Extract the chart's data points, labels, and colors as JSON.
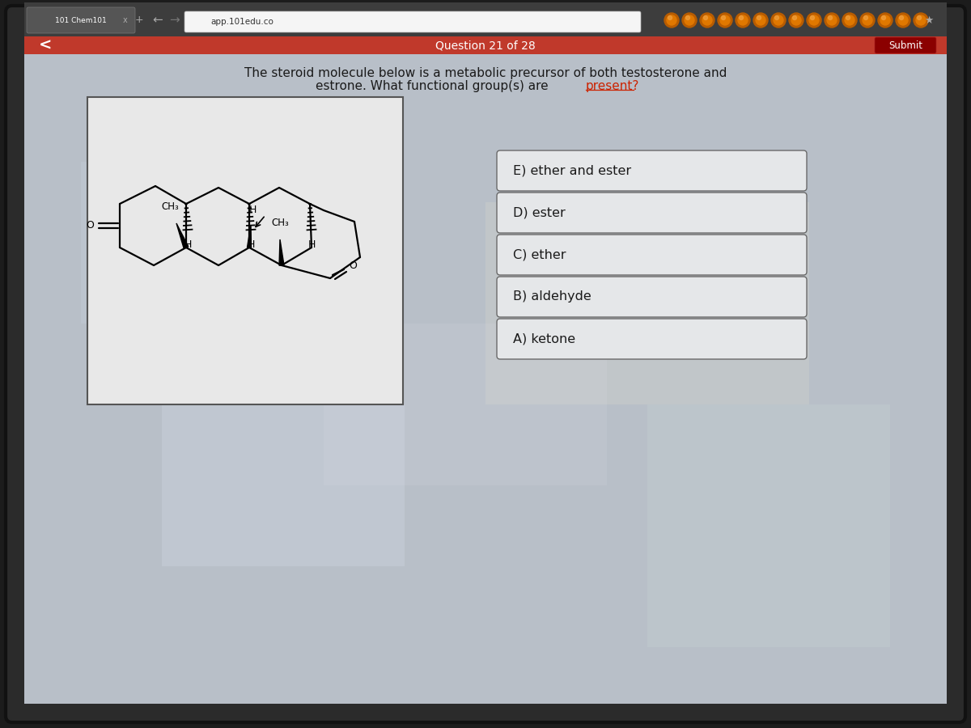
{
  "tab_text": "101 Chem101",
  "url_text": "app.101edu.co",
  "question_number": "Question 21 of 28",
  "submit_text": "Submit",
  "question_line1": "The steroid molecule below is a metabolic precursor of both testosterone and",
  "question_line2_normal": "estrone. What functional group(s) are ",
  "question_line2_colored": "present?",
  "answers": [
    "A) ketone",
    "B) aldehyde",
    "C) ether",
    "D) ester",
    "E) ether and ester"
  ],
  "bg_outer": "#1c1c1c",
  "bg_screen": "#b8bfc8",
  "browser_bar": "#3d3d3d",
  "red_bar": "#c0392b",
  "molecule_box_bg": "#e0e0e0",
  "molecule_box_border": "#505050",
  "answer_box_bg": "#e5e7e9",
  "answer_box_border": "#6a6a6a",
  "text_dark": "#1a1a1a",
  "text_present_color": "#cc2200"
}
